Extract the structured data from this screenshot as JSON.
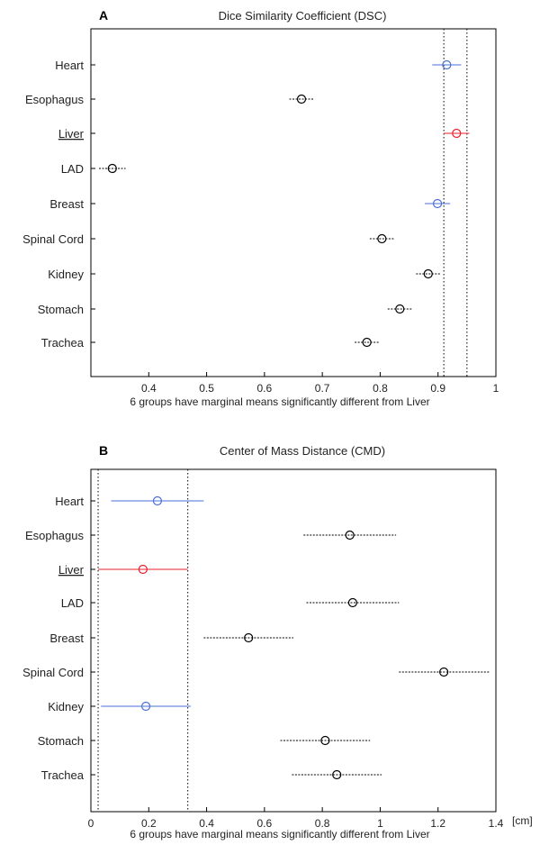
{
  "chart_data": [
    {
      "type": "scatter",
      "panel_label": "A",
      "title": "Dice Similarity Coefficient (DSC)",
      "xlabel": "6 groups have marginal means significantly different from Liver",
      "ylabel": "",
      "xlim": [
        0.3,
        1.0
      ],
      "x_ticks": [
        "0.4",
        "0.5",
        "0.6",
        "0.7",
        "0.8",
        "0.9",
        "1"
      ],
      "x_tick_values": [
        0.4,
        0.5,
        0.6,
        0.7,
        0.8,
        0.9,
        1.0
      ],
      "unit": "",
      "reference_lines": [
        0.91,
        0.95
      ],
      "grid": false,
      "series": [
        {
          "label": "Heart",
          "mean": 0.915,
          "low": 0.89,
          "high": 0.94,
          "color": "#4a6fd4",
          "underline": false
        },
        {
          "label": "Esophagus",
          "mean": 0.664,
          "low": 0.643,
          "high": 0.685,
          "color": "#000000",
          "underline": false
        },
        {
          "label": "Liver",
          "mean": 0.932,
          "low": 0.91,
          "high": 0.954,
          "color": "#e8202a",
          "underline": true
        },
        {
          "label": "LAD",
          "mean": 0.337,
          "low": 0.314,
          "high": 0.36,
          "color": "#000000",
          "underline": false
        },
        {
          "label": "Breast",
          "mean": 0.899,
          "low": 0.877,
          "high": 0.921,
          "color": "#4a6fd4",
          "underline": false
        },
        {
          "label": "Spinal Cord",
          "mean": 0.803,
          "low": 0.782,
          "high": 0.824,
          "color": "#000000",
          "underline": false
        },
        {
          "label": "Kidney",
          "mean": 0.883,
          "low": 0.862,
          "high": 0.904,
          "color": "#000000",
          "underline": false
        },
        {
          "label": "Stomach",
          "mean": 0.834,
          "low": 0.813,
          "high": 0.855,
          "color": "#000000",
          "underline": false
        },
        {
          "label": "Trachea",
          "mean": 0.777,
          "low": 0.756,
          "high": 0.798,
          "color": "#000000",
          "underline": false
        }
      ]
    },
    {
      "type": "scatter",
      "panel_label": "B",
      "title": "Center of Mass Distance (CMD)",
      "xlabel": "6 groups have marginal means significantly different from Liver",
      "ylabel": "",
      "xlim": [
        0,
        1.4
      ],
      "x_ticks": [
        "0",
        "0.2",
        "0.4",
        "0.6",
        "0.8",
        "1",
        "1.2",
        "1.4"
      ],
      "x_tick_values": [
        0,
        0.2,
        0.4,
        0.6,
        0.8,
        1.0,
        1.2,
        1.4
      ],
      "unit": "[cm]",
      "reference_lines": [
        0.025,
        0.335
      ],
      "grid": false,
      "series": [
        {
          "label": "Heart",
          "mean": 0.23,
          "low": 0.07,
          "high": 0.39,
          "color": "#4a6fd4",
          "underline": false
        },
        {
          "label": "Esophagus",
          "mean": 0.895,
          "low": 0.735,
          "high": 1.055,
          "color": "#000000",
          "underline": false
        },
        {
          "label": "Liver",
          "mean": 0.18,
          "low": 0.025,
          "high": 0.335,
          "color": "#e8202a",
          "underline": true
        },
        {
          "label": "LAD",
          "mean": 0.905,
          "low": 0.745,
          "high": 1.065,
          "color": "#000000",
          "underline": false
        },
        {
          "label": "Breast",
          "mean": 0.545,
          "low": 0.39,
          "high": 0.7,
          "color": "#000000",
          "underline": false
        },
        {
          "label": "Spinal Cord",
          "mean": 1.22,
          "low": 1.065,
          "high": 1.38,
          "color": "#000000",
          "underline": false
        },
        {
          "label": "Kidney",
          "mean": 0.19,
          "low": 0.035,
          "high": 0.345,
          "color": "#4a6fd4",
          "underline": false
        },
        {
          "label": "Stomach",
          "mean": 0.81,
          "low": 0.655,
          "high": 0.965,
          "color": "#000000",
          "underline": false
        },
        {
          "label": "Trachea",
          "mean": 0.85,
          "low": 0.695,
          "high": 1.005,
          "color": "#000000",
          "underline": false
        }
      ]
    }
  ]
}
